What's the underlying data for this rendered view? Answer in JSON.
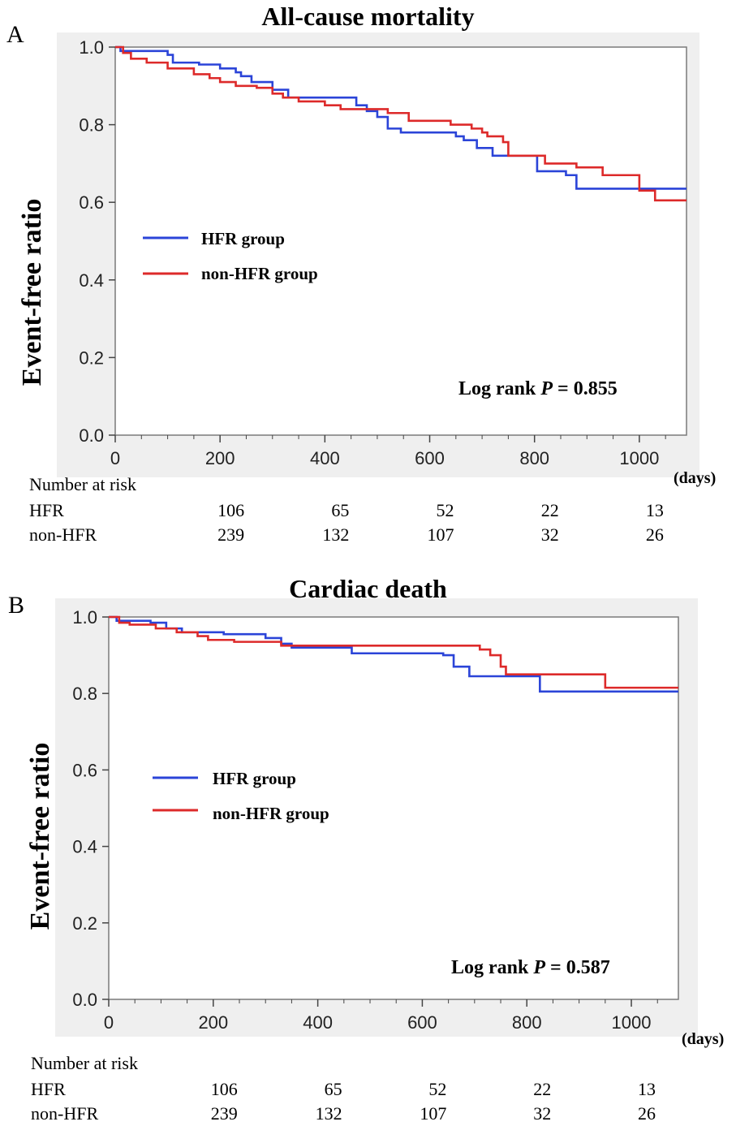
{
  "colors": {
    "hfr": "#2b44d8",
    "non_hfr": "#dd2a2a",
    "plot_bg": "#ffffff",
    "figure_bg": "#efefef"
  },
  "chart_data": [
    {
      "panel": "A",
      "type": "line",
      "title": "All-cause mortality",
      "ylabel": "Event-free ratio",
      "xlabel": "",
      "x_unit_label": "(days)",
      "xlim": [
        0,
        1090
      ],
      "ylim": [
        0,
        1.0
      ],
      "x_ticks": [
        "0",
        "200",
        "400",
        "600",
        "800",
        "1000"
      ],
      "y_ticks": [
        "0.0",
        "0.2",
        "0.4",
        "0.6",
        "0.8",
        "1.0"
      ],
      "grid": false,
      "legend_position": "center-left",
      "annotation": {
        "prefix": "Log rank ",
        "italic": "P",
        "suffix": " = 0.855"
      },
      "series": [
        {
          "name": "HFR group",
          "color": "#2b44d8",
          "points": [
            [
              0,
              1.0
            ],
            [
              10,
              0.99
            ],
            [
              100,
              0.98
            ],
            [
              110,
              0.96
            ],
            [
              160,
              0.955
            ],
            [
              200,
              0.945
            ],
            [
              230,
              0.935
            ],
            [
              240,
              0.925
            ],
            [
              260,
              0.91
            ],
            [
              300,
              0.89
            ],
            [
              330,
              0.87
            ],
            [
              420,
              0.87
            ],
            [
              460,
              0.85
            ],
            [
              480,
              0.835
            ],
            [
              500,
              0.82
            ],
            [
              520,
              0.79
            ],
            [
              545,
              0.78
            ],
            [
              650,
              0.77
            ],
            [
              665,
              0.76
            ],
            [
              690,
              0.74
            ],
            [
              720,
              0.72
            ],
            [
              800,
              0.72
            ],
            [
              805,
              0.68
            ],
            [
              860,
              0.67
            ],
            [
              880,
              0.635
            ],
            [
              1090,
              0.635
            ]
          ]
        },
        {
          "name": "non-HFR group",
          "color": "#dd2a2a",
          "points": [
            [
              0,
              1.0
            ],
            [
              15,
              0.985
            ],
            [
              30,
              0.97
            ],
            [
              60,
              0.96
            ],
            [
              100,
              0.945
            ],
            [
              150,
              0.93
            ],
            [
              180,
              0.92
            ],
            [
              200,
              0.91
            ],
            [
              230,
              0.9
            ],
            [
              270,
              0.895
            ],
            [
              300,
              0.88
            ],
            [
              320,
              0.87
            ],
            [
              350,
              0.86
            ],
            [
              400,
              0.85
            ],
            [
              430,
              0.84
            ],
            [
              480,
              0.84
            ],
            [
              520,
              0.83
            ],
            [
              560,
              0.81
            ],
            [
              640,
              0.8
            ],
            [
              680,
              0.79
            ],
            [
              700,
              0.78
            ],
            [
              710,
              0.77
            ],
            [
              740,
              0.755
            ],
            [
              750,
              0.72
            ],
            [
              820,
              0.7
            ],
            [
              880,
              0.69
            ],
            [
              930,
              0.67
            ],
            [
              1000,
              0.63
            ],
            [
              1030,
              0.605
            ],
            [
              1090,
              0.605
            ]
          ]
        }
      ],
      "number_at_risk": {
        "header": "Number at risk",
        "x": [
          200,
          400,
          600,
          800,
          1000
        ],
        "rows": [
          {
            "label": "HFR",
            "values": [
              "106",
              "65",
              "52",
              "22",
              "13"
            ]
          },
          {
            "label": "non-HFR",
            "values": [
              "239",
              "132",
              "107",
              "32",
              "26"
            ]
          }
        ]
      }
    },
    {
      "panel": "B",
      "type": "line",
      "title": "Cardiac death",
      "ylabel": "Event-free ratio",
      "xlabel": "",
      "x_unit_label": "(days)",
      "xlim": [
        0,
        1090
      ],
      "ylim": [
        0,
        1.0
      ],
      "x_ticks": [
        "0",
        "200",
        "400",
        "600",
        "800",
        "1000"
      ],
      "y_ticks": [
        "0.0",
        "0.2",
        "0.4",
        "0.6",
        "0.8",
        "1.0"
      ],
      "grid": false,
      "legend_position": "center-left",
      "annotation": {
        "prefix": "Log rank ",
        "italic": "P",
        "suffix": " = 0.587"
      },
      "series": [
        {
          "name": "HFR group",
          "color": "#2b44d8",
          "points": [
            [
              0,
              1.0
            ],
            [
              15,
              0.99
            ],
            [
              80,
              0.985
            ],
            [
              110,
              0.97
            ],
            [
              140,
              0.96
            ],
            [
              220,
              0.955
            ],
            [
              300,
              0.945
            ],
            [
              330,
              0.93
            ],
            [
              350,
              0.92
            ],
            [
              460,
              0.92
            ],
            [
              465,
              0.905
            ],
            [
              640,
              0.9
            ],
            [
              660,
              0.87
            ],
            [
              690,
              0.845
            ],
            [
              820,
              0.845
            ],
            [
              825,
              0.805
            ],
            [
              1090,
              0.805
            ]
          ]
        },
        {
          "name": "non-HFR group",
          "color": "#dd2a2a",
          "points": [
            [
              0,
              1.0
            ],
            [
              20,
              0.985
            ],
            [
              40,
              0.98
            ],
            [
              90,
              0.97
            ],
            [
              130,
              0.96
            ],
            [
              170,
              0.95
            ],
            [
              190,
              0.94
            ],
            [
              240,
              0.935
            ],
            [
              330,
              0.925
            ],
            [
              700,
              0.925
            ],
            [
              710,
              0.915
            ],
            [
              730,
              0.9
            ],
            [
              750,
              0.87
            ],
            [
              760,
              0.85
            ],
            [
              940,
              0.85
            ],
            [
              950,
              0.815
            ],
            [
              1090,
              0.815
            ]
          ]
        }
      ],
      "number_at_risk": {
        "header": "Number at risk",
        "x": [
          200,
          400,
          600,
          800,
          1000
        ],
        "rows": [
          {
            "label": "HFR",
            "values": [
              "106",
              "65",
              "52",
              "22",
              "13"
            ]
          },
          {
            "label": "non-HFR",
            "values": [
              "239",
              "132",
              "107",
              "32",
              "26"
            ]
          }
        ]
      }
    }
  ]
}
